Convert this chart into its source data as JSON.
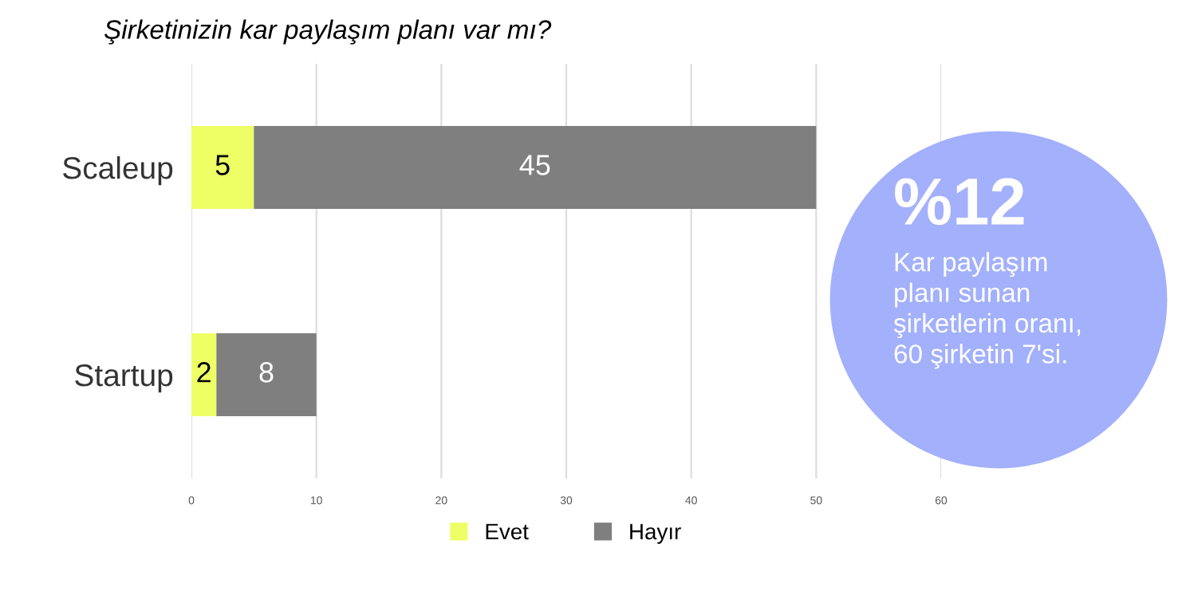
{
  "chart_data": {
    "type": "bar",
    "orientation": "horizontal",
    "stacked": true,
    "title": "Şirketinizin kar paylaşım planı var mı?",
    "categories": [
      "Scaleup",
      "Startup"
    ],
    "series": [
      {
        "name": "Evet",
        "color": "#eeff66",
        "values": [
          5,
          2
        ]
      },
      {
        "name": "Hayır",
        "color": "#7f7f7f",
        "values": [
          45,
          8
        ]
      }
    ],
    "xlim": [
      0,
      60
    ],
    "xticks": [
      0,
      10,
      20,
      30,
      40,
      50,
      60
    ],
    "grid": "x",
    "legend": "bottom",
    "data_labels": true,
    "annotations": [
      "%12",
      "Kar paylaşım\nplanı sunan\nşirketlerin oranı,\n60 şirketin 7'si."
    ]
  }
}
